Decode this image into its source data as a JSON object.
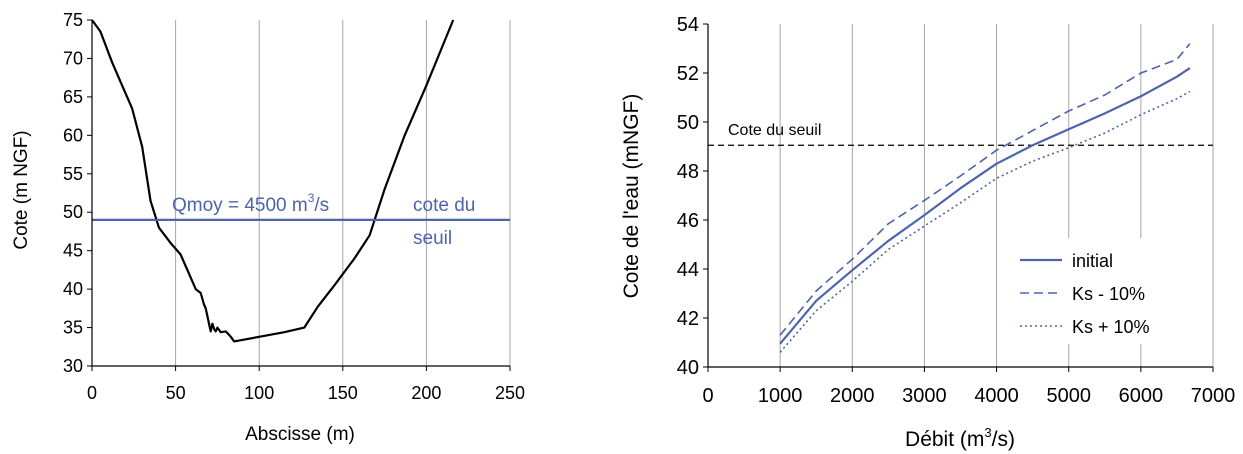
{
  "chart_data": [
    {
      "type": "line",
      "xlabel": "Abscisse (m)",
      "ylabel": "Cote (m NGF)",
      "xlim": [
        0,
        250
      ],
      "ylim": [
        30,
        75
      ],
      "xticks": [
        "0",
        "50",
        "100",
        "150",
        "200",
        "250"
      ],
      "yticks": [
        "30",
        "35",
        "40",
        "45",
        "50",
        "55",
        "60",
        "65",
        "70",
        "75"
      ],
      "series": [
        {
          "color": "#000000",
          "x": [
            0,
            5,
            12,
            18,
            24,
            30,
            35,
            40,
            47,
            53,
            58,
            62,
            65,
            67,
            68,
            69,
            70,
            71,
            72,
            73,
            74,
            75,
            77,
            80,
            83,
            85,
            100,
            115,
            127,
            135,
            145,
            157,
            166,
            175,
            187,
            200,
            216
          ],
          "y": [
            75,
            73.5,
            69.5,
            66.5,
            63.5,
            58.5,
            51.5,
            48,
            46,
            44.5,
            42,
            40,
            39.5,
            38,
            37.5,
            36.5,
            35.5,
            34.5,
            35.5,
            34.8,
            34.5,
            35,
            34.4,
            34.5,
            33.8,
            33.2,
            33.8,
            34.4,
            35,
            37.7,
            40.5,
            44,
            47,
            53,
            60,
            66.5,
            75
          ]
        }
      ],
      "hline": {
        "y": 49,
        "color": "#4d64ad"
      },
      "annotations": {
        "qmoy_prefix": "Qmoy = 4500 m",
        "qmoy_sup": "3",
        "qmoy_suffix": "/s",
        "cote_line1": "cote du",
        "cote_line2": "seuil"
      },
      "grid": "vertical"
    },
    {
      "type": "line",
      "xlabel_prefix": "Débit (m",
      "xlabel_sup": "3",
      "xlabel_suffix": "/s)",
      "ylabel": "Cote de l'eau (mNGF)",
      "xlim": [
        0,
        7000
      ],
      "ylim": [
        40,
        54
      ],
      "xticks": [
        "0",
        "1000",
        "2000",
        "3000",
        "4000",
        "5000",
        "6000",
        "7000"
      ],
      "yticks": [
        "40",
        "42",
        "44",
        "46",
        "48",
        "50",
        "52",
        "54"
      ],
      "hline": {
        "y": 49.05,
        "label": "Cote du seuil",
        "style": "dashed",
        "color": "#000000"
      },
      "series": [
        {
          "name": "initial",
          "style": "solid",
          "color": "#4d64ad",
          "x": [
            1000,
            1500,
            2000,
            2500,
            3000,
            3500,
            4000,
            4500,
            5000,
            5500,
            6000,
            6500,
            6680
          ],
          "y": [
            40.95,
            42.7,
            43.95,
            45.15,
            46.2,
            47.3,
            48.3,
            49.05,
            49.7,
            50.35,
            51.05,
            51.85,
            52.2
          ]
        },
        {
          "name": "Ks - 10%",
          "style": "dashed",
          "color": "#4d64ad",
          "x": [
            1000,
            1500,
            2000,
            2500,
            3000,
            3500,
            4000,
            4500,
            5000,
            5500,
            6000,
            6500,
            6680
          ],
          "y": [
            41.3,
            43.1,
            44.4,
            45.85,
            46.8,
            47.8,
            48.85,
            49.65,
            50.45,
            51.1,
            52.0,
            52.55,
            53.2
          ]
        },
        {
          "name": "Ks + 10%",
          "style": "dotted",
          "color": "#4d64ad",
          "x": [
            1000,
            1500,
            2000,
            2500,
            3000,
            3500,
            4000,
            4500,
            5000,
            5500,
            6000,
            6500,
            6680
          ],
          "y": [
            40.6,
            42.3,
            43.5,
            44.8,
            45.75,
            46.7,
            47.7,
            48.4,
            48.95,
            49.55,
            50.3,
            50.95,
            51.25
          ]
        }
      ],
      "legend": "lower-right",
      "grid": "vertical"
    }
  ]
}
